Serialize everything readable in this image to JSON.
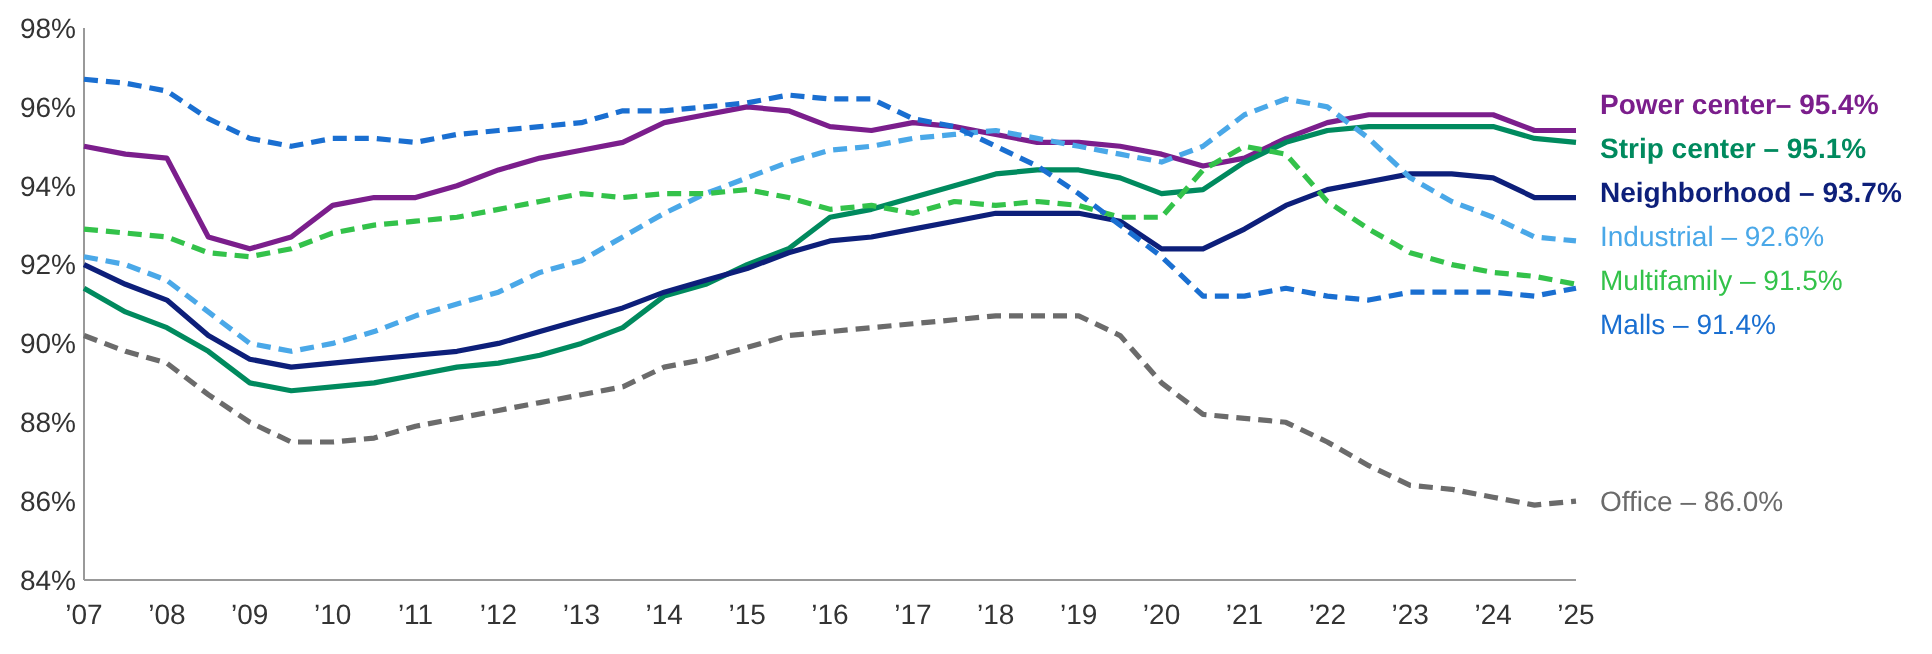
{
  "chart_data": {
    "type": "line",
    "grid": false,
    "marker": "none",
    "x": [
      2007,
      2007.5,
      2008,
      2008.5,
      2009,
      2009.5,
      2010,
      2010.5,
      2011,
      2011.5,
      2012,
      2012.5,
      2013,
      2013.5,
      2014,
      2014.5,
      2015,
      2015.5,
      2016,
      2016.5,
      2017,
      2017.5,
      2018,
      2018.5,
      2019,
      2019.5,
      2020,
      2020.5,
      2021,
      2021.5,
      2022,
      2022.5,
      2023,
      2023.5,
      2024,
      2024.5,
      2025
    ],
    "xlim": [
      2007,
      2025
    ],
    "xticks": [
      {
        "value": 2007,
        "label": "’07"
      },
      {
        "value": 2008,
        "label": "’08"
      },
      {
        "value": 2009,
        "label": "’09"
      },
      {
        "value": 2010,
        "label": "’10"
      },
      {
        "value": 2011,
        "label": "’11"
      },
      {
        "value": 2012,
        "label": "’12"
      },
      {
        "value": 2013,
        "label": "’13"
      },
      {
        "value": 2014,
        "label": "’14"
      },
      {
        "value": 2015,
        "label": "’15"
      },
      {
        "value": 2016,
        "label": "’16"
      },
      {
        "value": 2017,
        "label": "’17"
      },
      {
        "value": 2018,
        "label": "’18"
      },
      {
        "value": 2019,
        "label": "’19"
      },
      {
        "value": 2020,
        "label": "’20"
      },
      {
        "value": 2021,
        "label": "’21"
      },
      {
        "value": 2022,
        "label": "’22"
      },
      {
        "value": 2023,
        "label": "’23"
      },
      {
        "value": 2024,
        "label": "’24"
      },
      {
        "value": 2025,
        "label": "’25"
      }
    ],
    "ylim": [
      84,
      98
    ],
    "yticks": [
      {
        "value": 84,
        "label": "84%"
      },
      {
        "value": 86,
        "label": "86%"
      },
      {
        "value": 88,
        "label": "88%"
      },
      {
        "value": 90,
        "label": "90%"
      },
      {
        "value": 92,
        "label": "92%"
      },
      {
        "value": 94,
        "label": "94%"
      },
      {
        "value": 96,
        "label": "96%"
      },
      {
        "value": 98,
        "label": "98%"
      }
    ],
    "series": [
      {
        "name": "Power center– 95.4%",
        "color": "#7b1e8c",
        "line_style": "solid",
        "values": [
          95.0,
          94.8,
          94.7,
          92.7,
          92.4,
          92.7,
          93.5,
          93.7,
          93.7,
          94.0,
          94.4,
          94.7,
          94.9,
          95.1,
          95.6,
          95.8,
          96.0,
          95.9,
          95.5,
          95.4,
          95.6,
          95.5,
          95.3,
          95.1,
          95.1,
          95.0,
          94.8,
          94.5,
          94.7,
          95.2,
          95.6,
          95.8,
          95.8,
          95.8,
          95.8,
          95.4,
          95.4
        ]
      },
      {
        "name": "Strip center – 95.1%",
        "color": "#008a5e",
        "line_style": "solid",
        "values": [
          91.4,
          90.8,
          90.4,
          89.8,
          89.0,
          88.8,
          88.9,
          89.0,
          89.2,
          89.4,
          89.5,
          89.7,
          90.0,
          90.4,
          91.2,
          91.5,
          92.0,
          92.4,
          93.2,
          93.4,
          93.7,
          94.0,
          94.3,
          94.4,
          94.4,
          94.2,
          93.8,
          93.9,
          94.6,
          95.1,
          95.4,
          95.5,
          95.5,
          95.5,
          95.5,
          95.2,
          95.1
        ]
      },
      {
        "name": "Neighborhood – 93.7%",
        "color": "#0d1f7a",
        "line_style": "solid",
        "values": [
          92.0,
          91.5,
          91.1,
          90.2,
          89.6,
          89.4,
          89.5,
          89.6,
          89.7,
          89.8,
          90.0,
          90.3,
          90.6,
          90.9,
          91.3,
          91.6,
          91.9,
          92.3,
          92.6,
          92.7,
          92.9,
          93.1,
          93.3,
          93.3,
          93.3,
          93.1,
          92.4,
          92.4,
          92.9,
          93.5,
          93.9,
          94.1,
          94.3,
          94.3,
          94.2,
          93.7,
          93.7
        ]
      },
      {
        "name": "Industrial – 92.6%",
        "color": "#4aa8e8",
        "line_style": "dashed",
        "values": [
          92.2,
          92.0,
          91.6,
          90.8,
          90.0,
          89.8,
          90.0,
          90.3,
          90.7,
          91.0,
          91.3,
          91.8,
          92.1,
          92.7,
          93.3,
          93.8,
          94.2,
          94.6,
          94.9,
          95.0,
          95.2,
          95.3,
          95.4,
          95.2,
          95.0,
          94.8,
          94.6,
          95.0,
          95.8,
          96.2,
          96.0,
          95.2,
          94.2,
          93.6,
          93.2,
          92.7,
          92.6
        ]
      },
      {
        "name": "Multifamily – 91.5%",
        "color": "#33c24a",
        "line_style": "dashed",
        "values": [
          92.9,
          92.8,
          92.7,
          92.3,
          92.2,
          92.4,
          92.8,
          93.0,
          93.1,
          93.2,
          93.4,
          93.6,
          93.8,
          93.7,
          93.8,
          93.8,
          93.9,
          93.7,
          93.4,
          93.5,
          93.3,
          93.6,
          93.5,
          93.6,
          93.5,
          93.2,
          93.2,
          94.4,
          95.0,
          94.8,
          93.6,
          92.9,
          92.3,
          92.0,
          91.8,
          91.7,
          91.5
        ]
      },
      {
        "name": "Malls – 91.4%",
        "color": "#1a6fd1",
        "line_style": "dashed",
        "values": [
          96.7,
          96.6,
          96.4,
          95.7,
          95.2,
          95.0,
          95.2,
          95.2,
          95.1,
          95.3,
          95.4,
          95.5,
          95.6,
          95.9,
          95.9,
          96.0,
          96.1,
          96.3,
          96.2,
          96.2,
          95.7,
          95.5,
          95.0,
          94.5,
          93.8,
          93.0,
          92.2,
          91.2,
          91.2,
          91.4,
          91.2,
          91.1,
          91.3,
          91.3,
          91.3,
          91.2,
          91.4
        ]
      },
      {
        "name": "Office – 86.0%",
        "color": "#6b6b6b",
        "line_style": "dashed",
        "values": [
          90.2,
          89.8,
          89.5,
          88.7,
          88.0,
          87.5,
          87.5,
          87.6,
          87.9,
          88.1,
          88.3,
          88.5,
          88.7,
          88.9,
          89.4,
          89.6,
          89.9,
          90.2,
          90.3,
          90.4,
          90.5,
          90.6,
          90.7,
          90.7,
          90.7,
          90.2,
          89.0,
          88.2,
          88.1,
          88.0,
          87.5,
          86.9,
          86.4,
          86.3,
          86.1,
          85.9,
          86.0
        ]
      }
    ]
  }
}
